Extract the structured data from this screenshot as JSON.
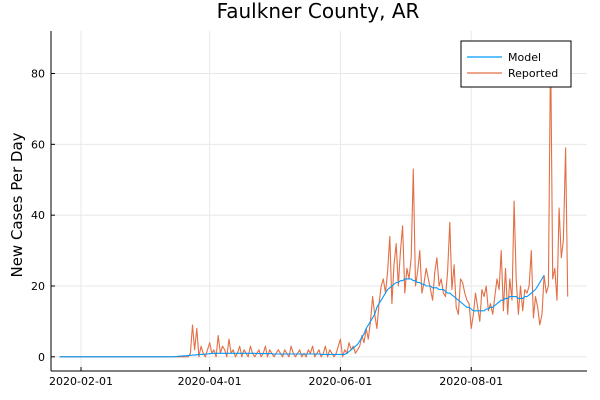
{
  "chart_data": {
    "type": "line",
    "title": "Faulkner County, AR",
    "xlabel": "",
    "ylabel": "New Cases Per Day",
    "x_start": "2020-01-22",
    "x_tick_labels": [
      "2020-02-01",
      "2020-04-01",
      "2020-06-01",
      "2020-08-01"
    ],
    "y_tick_labels": [
      "0",
      "20",
      "40",
      "60",
      "80"
    ],
    "xlim": [
      "2020-01-18",
      "2020-09-24"
    ],
    "ylim": [
      -4,
      92
    ],
    "grid": true,
    "legend_position": "top-right",
    "series": [
      {
        "name": "Model",
        "color": "#009AFA",
        "values": [
          0,
          0,
          0,
          0,
          0,
          0,
          0,
          0,
          0,
          0,
          0,
          0,
          0,
          0,
          0,
          0,
          0,
          0,
          0,
          0,
          0,
          0,
          0,
          0,
          0,
          0,
          0,
          0,
          0,
          0,
          0,
          0,
          0,
          0,
          0,
          0,
          0,
          0,
          0,
          0,
          0,
          0,
          0,
          0,
          0,
          0,
          0,
          0,
          0,
          0,
          0,
          0,
          0,
          0,
          0.1,
          0.1,
          0.2,
          0.2,
          0.3,
          0.3,
          0.4,
          0.4,
          0.5,
          0.5,
          0.6,
          0.6,
          0.7,
          0.7,
          0.8,
          0.8,
          0.9,
          0.9,
          1.0,
          1.0,
          1.0,
          1.0,
          1.0,
          1.0,
          1.0,
          1.0,
          1.0,
          1.0,
          1.0,
          1.0,
          1.0,
          1.0,
          1.0,
          1.0,
          1.0,
          1.0,
          1.0,
          1.0,
          0.9,
          0.9,
          0.9,
          0.9,
          0.9,
          0.9,
          0.9,
          0.9,
          0.8,
          0.8,
          0.8,
          0.8,
          0.8,
          0.8,
          0.8,
          0.8,
          0.8,
          0.8,
          0.8,
          0.8,
          0.8,
          0.8,
          0.8,
          0.8,
          0.8,
          0.8,
          0.8,
          0.8,
          0.8,
          0.8,
          0.7,
          0.7,
          0.7,
          0.7,
          0.7,
          0.7,
          0.7,
          0.7,
          0.7,
          0.7,
          0.7,
          0.7,
          1.0,
          1.5,
          2.0,
          2.5,
          3.0,
          3.5,
          4.5,
          5.5,
          6.5,
          8,
          9,
          10,
          11,
          12,
          14,
          15,
          16,
          17,
          18,
          19,
          19.5,
          20,
          20.5,
          21,
          21,
          21.5,
          21.5,
          22,
          22,
          22,
          22,
          21.5,
          21.5,
          21,
          21,
          20.5,
          20.5,
          20,
          20,
          20,
          19.5,
          19.5,
          19.5,
          19,
          19,
          19,
          18.5,
          18,
          18,
          17.5,
          17,
          16.5,
          16,
          15.5,
          15,
          14.5,
          14,
          14,
          13.5,
          13,
          13,
          13,
          13,
          13,
          13,
          13.5,
          13.5,
          14,
          14,
          14.5,
          15,
          15.5,
          16,
          16,
          16.5,
          16.5,
          17,
          17,
          17,
          17,
          16.5,
          16.5,
          16.5,
          17,
          17,
          17.5,
          18,
          18.5,
          19,
          20,
          21,
          22,
          23
        ]
      },
      {
        "name": "Reported",
        "color": "#E26F46",
        "values": [
          0,
          0,
          0,
          0,
          0,
          0,
          0,
          0,
          0,
          0,
          0,
          0,
          0,
          0,
          0,
          0,
          0,
          0,
          0,
          0,
          0,
          0,
          0,
          0,
          0,
          0,
          0,
          0,
          0,
          0,
          0,
          0,
          0,
          0,
          0,
          0,
          0,
          0,
          0,
          0,
          0,
          0,
          0,
          0,
          0,
          0,
          0,
          0,
          0,
          0,
          0,
          0,
          0,
          0,
          0,
          0,
          0,
          0,
          0,
          0,
          0,
          1,
          9,
          2,
          8,
          0,
          3,
          1,
          0,
          2,
          4,
          1,
          2,
          0,
          6,
          1,
          3,
          2,
          0,
          5,
          1,
          2,
          0,
          1,
          3,
          0,
          2,
          1,
          0,
          3,
          1,
          0,
          1,
          2,
          0,
          1,
          3,
          0,
          2,
          1,
          0,
          1,
          2,
          1,
          0,
          2,
          1,
          0,
          3,
          1,
          0,
          1,
          2,
          0,
          1,
          0,
          2,
          1,
          3,
          0,
          1,
          2,
          0,
          1,
          3,
          0,
          2,
          1,
          0,
          1,
          3,
          5,
          0,
          2,
          1,
          4,
          2,
          3,
          1,
          2,
          3,
          6,
          4,
          8,
          5,
          10,
          17,
          12,
          8,
          15,
          20,
          22,
          18,
          24,
          34,
          15,
          26,
          32,
          20,
          30,
          37,
          18,
          25,
          22,
          28,
          53,
          20,
          24,
          30,
          18,
          21,
          25,
          22,
          19,
          16,
          24,
          28,
          20,
          22,
          18,
          17,
          24,
          38,
          19,
          26,
          14,
          12,
          22,
          21,
          18,
          16,
          15,
          8,
          12,
          18,
          14,
          10,
          19,
          17,
          20,
          13,
          15,
          12,
          17,
          22,
          19,
          30,
          13,
          25,
          12,
          22,
          16,
          44,
          22,
          12,
          20,
          13,
          19,
          18,
          20,
          30,
          11,
          17,
          14,
          9,
          12,
          23,
          18,
          20,
          88,
          22,
          25,
          16,
          42,
          28,
          33,
          59,
          17
        ]
      }
    ]
  }
}
